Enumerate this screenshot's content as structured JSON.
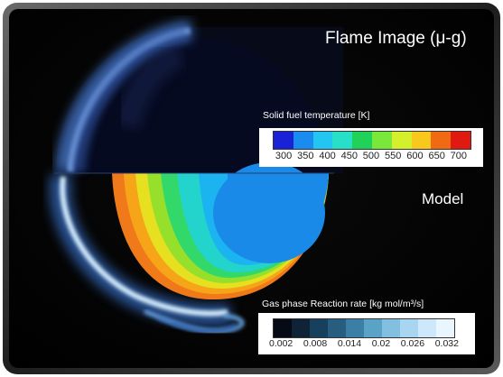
{
  "figure": {
    "title": "Flame Image (μ-g)",
    "model_label": "Model"
  },
  "solid_legend": {
    "title": "Solid fuel temperature [K]",
    "ticks": [
      "300",
      "350",
      "400",
      "450",
      "500",
      "550",
      "600",
      "650",
      "700"
    ],
    "colors": [
      "#1a22d8",
      "#1a8cf0",
      "#22c6f0",
      "#28e0c8",
      "#20d25a",
      "#7ae83a",
      "#d4f02c",
      "#f8c81c",
      "#f06a14",
      "#e01a10"
    ]
  },
  "gas_legend": {
    "title": "Gas phase Reaction rate [kg mol/m³/s]",
    "ticks": [
      "0.002",
      "0.008",
      "0.014",
      "0.02",
      "0.026",
      "0.032"
    ],
    "colors": [
      "#050a14",
      "#0e2436",
      "#17405c",
      "#275e80",
      "#3b7fa6",
      "#5aa2c6",
      "#82bfe0",
      "#a8d6f0",
      "#cce8fa",
      "#eaf6ff"
    ]
  },
  "model_colors": {
    "outer": "#f07a1a",
    "band2": "#f6a418",
    "band3": "#e6e020",
    "band4": "#96e02c",
    "band5": "#32d86a",
    "band6": "#22d4cc",
    "band7": "#1cb4f0",
    "core": "#1a8ae8"
  }
}
